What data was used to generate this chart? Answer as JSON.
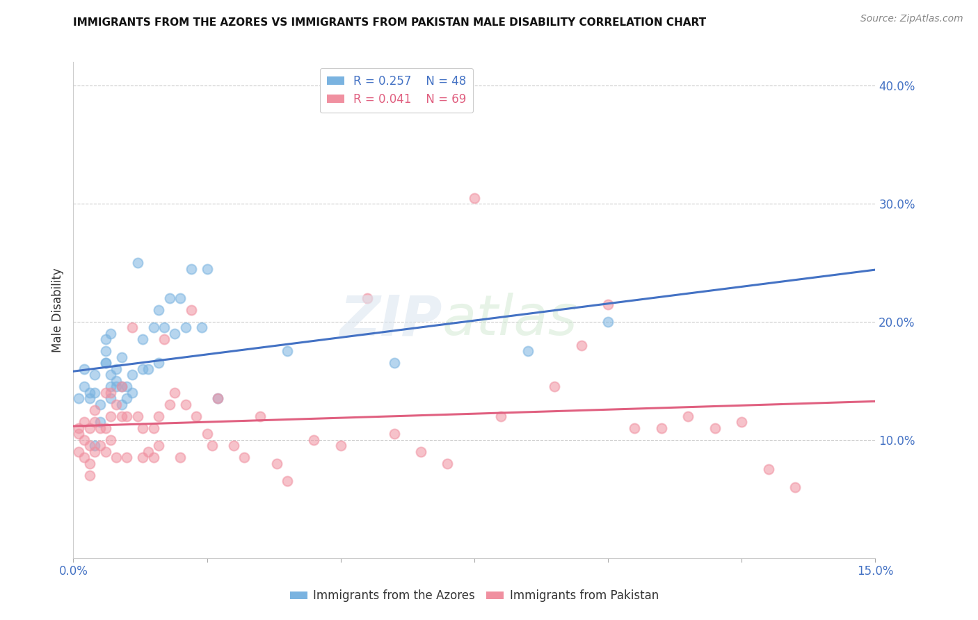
{
  "title": "IMMIGRANTS FROM THE AZORES VS IMMIGRANTS FROM PAKISTAN MALE DISABILITY CORRELATION CHART",
  "source": "Source: ZipAtlas.com",
  "ylabel": "Male Disability",
  "right_yticks": [
    0.0,
    0.1,
    0.2,
    0.3,
    0.4
  ],
  "right_yticklabels": [
    "",
    "10.0%",
    "20.0%",
    "30.0%",
    "40.0%"
  ],
  "xlim": [
    0.0,
    0.15
  ],
  "ylim": [
    0.0,
    0.42
  ],
  "legend_r1": "R = 0.257",
  "legend_n1": "N = 48",
  "legend_r2": "R = 0.041",
  "legend_n2": "N = 69",
  "label1": "Immigrants from the Azores",
  "label2": "Immigrants from Pakistan",
  "color1": "#7ab3e0",
  "color2": "#f090a0",
  "line_color1": "#4472c4",
  "line_color2": "#e06080",
  "azores_x": [
    0.001,
    0.002,
    0.002,
    0.003,
    0.003,
    0.004,
    0.004,
    0.004,
    0.005,
    0.005,
    0.006,
    0.006,
    0.006,
    0.006,
    0.007,
    0.007,
    0.007,
    0.007,
    0.008,
    0.008,
    0.008,
    0.009,
    0.009,
    0.009,
    0.01,
    0.01,
    0.011,
    0.011,
    0.012,
    0.013,
    0.013,
    0.014,
    0.015,
    0.016,
    0.016,
    0.017,
    0.018,
    0.019,
    0.02,
    0.021,
    0.022,
    0.024,
    0.025,
    0.027,
    0.04,
    0.06,
    0.085,
    0.1
  ],
  "azores_y": [
    0.135,
    0.16,
    0.145,
    0.135,
    0.14,
    0.095,
    0.14,
    0.155,
    0.115,
    0.13,
    0.165,
    0.165,
    0.175,
    0.185,
    0.135,
    0.145,
    0.155,
    0.19,
    0.145,
    0.15,
    0.16,
    0.13,
    0.145,
    0.17,
    0.145,
    0.135,
    0.14,
    0.155,
    0.25,
    0.16,
    0.185,
    0.16,
    0.195,
    0.165,
    0.21,
    0.195,
    0.22,
    0.19,
    0.22,
    0.195,
    0.245,
    0.195,
    0.245,
    0.135,
    0.175,
    0.165,
    0.175,
    0.2
  ],
  "pakistan_x": [
    0.001,
    0.001,
    0.001,
    0.002,
    0.002,
    0.002,
    0.003,
    0.003,
    0.003,
    0.003,
    0.004,
    0.004,
    0.004,
    0.005,
    0.005,
    0.006,
    0.006,
    0.006,
    0.007,
    0.007,
    0.007,
    0.008,
    0.008,
    0.009,
    0.009,
    0.01,
    0.01,
    0.011,
    0.012,
    0.013,
    0.013,
    0.014,
    0.015,
    0.015,
    0.016,
    0.016,
    0.017,
    0.018,
    0.019,
    0.02,
    0.021,
    0.022,
    0.023,
    0.025,
    0.026,
    0.027,
    0.03,
    0.032,
    0.035,
    0.038,
    0.04,
    0.045,
    0.05,
    0.055,
    0.06,
    0.065,
    0.07,
    0.075,
    0.08,
    0.09,
    0.095,
    0.1,
    0.105,
    0.11,
    0.115,
    0.12,
    0.125,
    0.13,
    0.135
  ],
  "pakistan_y": [
    0.11,
    0.105,
    0.09,
    0.115,
    0.1,
    0.085,
    0.11,
    0.095,
    0.08,
    0.07,
    0.125,
    0.115,
    0.09,
    0.11,
    0.095,
    0.14,
    0.11,
    0.09,
    0.14,
    0.12,
    0.1,
    0.13,
    0.085,
    0.145,
    0.12,
    0.12,
    0.085,
    0.195,
    0.12,
    0.11,
    0.085,
    0.09,
    0.11,
    0.085,
    0.095,
    0.12,
    0.185,
    0.13,
    0.14,
    0.085,
    0.13,
    0.21,
    0.12,
    0.105,
    0.095,
    0.135,
    0.095,
    0.085,
    0.12,
    0.08,
    0.065,
    0.1,
    0.095,
    0.22,
    0.105,
    0.09,
    0.08,
    0.305,
    0.12,
    0.145,
    0.18,
    0.215,
    0.11,
    0.11,
    0.12,
    0.11,
    0.115,
    0.075,
    0.06
  ]
}
